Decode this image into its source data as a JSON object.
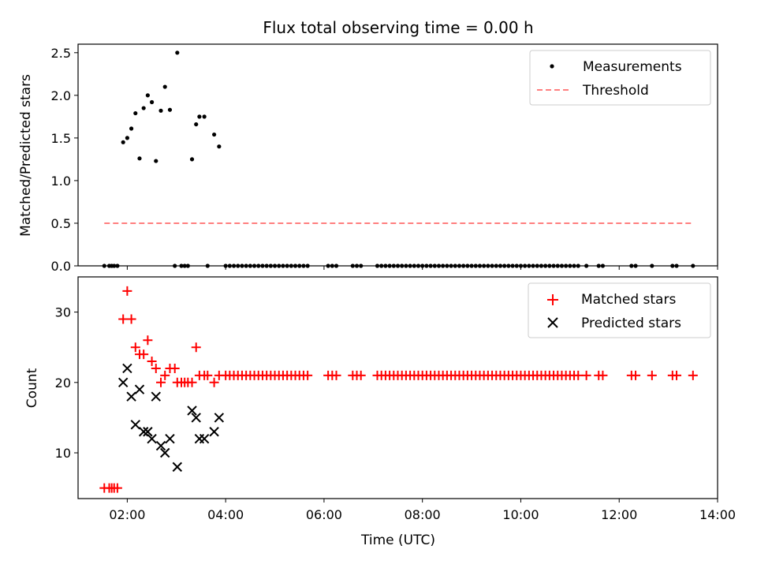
{
  "chart_data": [
    {
      "type": "scatter",
      "title": "Flux total observing time = 0.00 h",
      "xlabel": "",
      "ylabel": "Matched/Predicted stars",
      "xlim": [
        "01:00",
        "14:00"
      ],
      "ylim": [
        0,
        2.6
      ],
      "xticks": [
        "02:00",
        "04:00",
        "06:00",
        "08:00",
        "10:00",
        "12:00",
        "14:00"
      ],
      "yticks": [
        "0.0",
        "0.5",
        "1.0",
        "1.5",
        "2.0",
        "2.5"
      ],
      "legend_position": "upper right",
      "series": [
        {
          "name": "Measurements",
          "marker": "dot",
          "color": "#000000",
          "points": [
            [
              "01:32",
              0
            ],
            [
              "01:38",
              0
            ],
            [
              "01:41",
              0
            ],
            [
              "01:44",
              0
            ],
            [
              "01:48",
              0
            ],
            [
              "01:55",
              1.45
            ],
            [
              "02:00",
              1.5
            ],
            [
              "02:05",
              1.61
            ],
            [
              "02:10",
              1.79
            ],
            [
              "02:15",
              1.26
            ],
            [
              "02:20",
              1.85
            ],
            [
              "02:25",
              2.0
            ],
            [
              "02:30",
              1.92
            ],
            [
              "02:35",
              1.23
            ],
            [
              "02:41",
              1.82
            ],
            [
              "02:46",
              2.1
            ],
            [
              "02:52",
              1.83
            ],
            [
              "02:58",
              0
            ],
            [
              "03:01",
              2.5
            ],
            [
              "03:06",
              0
            ],
            [
              "03:10",
              0
            ],
            [
              "03:14",
              0
            ],
            [
              "03:19",
              1.25
            ],
            [
              "03:24",
              1.66
            ],
            [
              "03:28",
              1.75
            ],
            [
              "03:34",
              1.75
            ],
            [
              "03:38",
              0
            ],
            [
              "03:46",
              1.54
            ],
            [
              "03:52",
              1.4
            ],
            [
              "04:00",
              0
            ],
            [
              "04:05",
              0
            ],
            [
              "04:10",
              0
            ],
            [
              "04:15",
              0
            ],
            [
              "04:20",
              0
            ],
            [
              "04:25",
              0
            ],
            [
              "04:30",
              0
            ],
            [
              "04:35",
              0
            ],
            [
              "04:40",
              0
            ],
            [
              "04:45",
              0
            ],
            [
              "04:50",
              0
            ],
            [
              "04:55",
              0
            ],
            [
              "05:00",
              0
            ],
            [
              "05:05",
              0
            ],
            [
              "05:10",
              0
            ],
            [
              "05:15",
              0
            ],
            [
              "05:20",
              0
            ],
            [
              "05:25",
              0
            ],
            [
              "05:30",
              0
            ],
            [
              "05:35",
              0
            ],
            [
              "05:40",
              0
            ],
            [
              "06:05",
              0
            ],
            [
              "06:10",
              0
            ],
            [
              "06:15",
              0
            ],
            [
              "06:35",
              0
            ],
            [
              "06:40",
              0
            ],
            [
              "06:45",
              0
            ],
            [
              "07:05",
              0
            ],
            [
              "07:10",
              0
            ],
            [
              "07:15",
              0
            ],
            [
              "07:20",
              0
            ],
            [
              "07:25",
              0
            ],
            [
              "07:30",
              0
            ],
            [
              "07:35",
              0
            ],
            [
              "07:40",
              0
            ],
            [
              "07:45",
              0
            ],
            [
              "07:50",
              0
            ],
            [
              "07:55",
              0
            ],
            [
              "08:00",
              0
            ],
            [
              "08:05",
              0
            ],
            [
              "08:10",
              0
            ],
            [
              "08:15",
              0
            ],
            [
              "08:20",
              0
            ],
            [
              "08:25",
              0
            ],
            [
              "08:30",
              0
            ],
            [
              "08:35",
              0
            ],
            [
              "08:40",
              0
            ],
            [
              "08:45",
              0
            ],
            [
              "08:50",
              0
            ],
            [
              "08:55",
              0
            ],
            [
              "09:00",
              0
            ],
            [
              "09:05",
              0
            ],
            [
              "09:10",
              0
            ],
            [
              "09:15",
              0
            ],
            [
              "09:20",
              0
            ],
            [
              "09:25",
              0
            ],
            [
              "09:30",
              0
            ],
            [
              "09:35",
              0
            ],
            [
              "09:40",
              0
            ],
            [
              "09:45",
              0
            ],
            [
              "09:50",
              0
            ],
            [
              "09:55",
              0
            ],
            [
              "10:00",
              0
            ],
            [
              "10:05",
              0
            ],
            [
              "10:10",
              0
            ],
            [
              "10:15",
              0
            ],
            [
              "10:20",
              0
            ],
            [
              "10:25",
              0
            ],
            [
              "10:30",
              0
            ],
            [
              "10:35",
              0
            ],
            [
              "10:40",
              0
            ],
            [
              "10:45",
              0
            ],
            [
              "10:50",
              0
            ],
            [
              "10:55",
              0
            ],
            [
              "11:00",
              0
            ],
            [
              "11:05",
              0
            ],
            [
              "11:10",
              0
            ],
            [
              "11:20",
              0
            ],
            [
              "11:35",
              0
            ],
            [
              "11:40",
              0
            ],
            [
              "12:15",
              0
            ],
            [
              "12:20",
              0
            ],
            [
              "12:40",
              0
            ],
            [
              "13:05",
              0
            ],
            [
              "13:10",
              0
            ],
            [
              "13:30",
              0
            ]
          ]
        },
        {
          "name": "Threshold",
          "style": "dashed",
          "color": "#ff7f7f",
          "points": [
            [
              "01:32",
              0.5
            ],
            [
              "13:30",
              0.5
            ]
          ]
        }
      ]
    },
    {
      "type": "scatter",
      "title": "",
      "xlabel": "Time (UTC)",
      "ylabel": "Count",
      "xlim": [
        "01:00",
        "14:00"
      ],
      "ylim": [
        3.5,
        35
      ],
      "xticks": [
        "02:00",
        "04:00",
        "06:00",
        "08:00",
        "10:00",
        "12:00",
        "14:00"
      ],
      "yticks": [
        "10",
        "20",
        "30"
      ],
      "legend_position": "upper right",
      "series": [
        {
          "name": "Matched stars",
          "marker": "plus",
          "color": "#ff0000",
          "points": [
            [
              "01:32",
              5
            ],
            [
              "01:38",
              5
            ],
            [
              "01:41",
              5
            ],
            [
              "01:44",
              5
            ],
            [
              "01:48",
              5
            ],
            [
              "01:55",
              29
            ],
            [
              "02:00",
              33
            ],
            [
              "02:05",
              29
            ],
            [
              "02:10",
              25
            ],
            [
              "02:15",
              24
            ],
            [
              "02:20",
              24
            ],
            [
              "02:25",
              26
            ],
            [
              "02:30",
              23
            ],
            [
              "02:35",
              22
            ],
            [
              "02:41",
              20
            ],
            [
              "02:46",
              21
            ],
            [
              "02:52",
              22
            ],
            [
              "02:58",
              22
            ],
            [
              "03:01",
              20
            ],
            [
              "03:06",
              20
            ],
            [
              "03:10",
              20
            ],
            [
              "03:14",
              20
            ],
            [
              "03:19",
              20
            ],
            [
              "03:24",
              25
            ],
            [
              "03:28",
              21
            ],
            [
              "03:34",
              21
            ],
            [
              "03:38",
              21
            ],
            [
              "03:46",
              20
            ],
            [
              "03:52",
              21
            ],
            [
              "04:00",
              21
            ],
            [
              "04:05",
              21
            ],
            [
              "04:10",
              21
            ],
            [
              "04:15",
              21
            ],
            [
              "04:20",
              21
            ],
            [
              "04:25",
              21
            ],
            [
              "04:30",
              21
            ],
            [
              "04:35",
              21
            ],
            [
              "04:40",
              21
            ],
            [
              "04:45",
              21
            ],
            [
              "04:50",
              21
            ],
            [
              "04:55",
              21
            ],
            [
              "05:00",
              21
            ],
            [
              "05:05",
              21
            ],
            [
              "05:10",
              21
            ],
            [
              "05:15",
              21
            ],
            [
              "05:20",
              21
            ],
            [
              "05:25",
              21
            ],
            [
              "05:30",
              21
            ],
            [
              "05:35",
              21
            ],
            [
              "05:40",
              21
            ],
            [
              "06:05",
              21
            ],
            [
              "06:10",
              21
            ],
            [
              "06:15",
              21
            ],
            [
              "06:35",
              21
            ],
            [
              "06:40",
              21
            ],
            [
              "06:45",
              21
            ],
            [
              "07:05",
              21
            ],
            [
              "07:10",
              21
            ],
            [
              "07:15",
              21
            ],
            [
              "07:20",
              21
            ],
            [
              "07:25",
              21
            ],
            [
              "07:30",
              21
            ],
            [
              "07:35",
              21
            ],
            [
              "07:40",
              21
            ],
            [
              "07:45",
              21
            ],
            [
              "07:50",
              21
            ],
            [
              "07:55",
              21
            ],
            [
              "08:00",
              21
            ],
            [
              "08:05",
              21
            ],
            [
              "08:10",
              21
            ],
            [
              "08:15",
              21
            ],
            [
              "08:20",
              21
            ],
            [
              "08:25",
              21
            ],
            [
              "08:30",
              21
            ],
            [
              "08:35",
              21
            ],
            [
              "08:40",
              21
            ],
            [
              "08:45",
              21
            ],
            [
              "08:50",
              21
            ],
            [
              "08:55",
              21
            ],
            [
              "09:00",
              21
            ],
            [
              "09:05",
              21
            ],
            [
              "09:10",
              21
            ],
            [
              "09:15",
              21
            ],
            [
              "09:20",
              21
            ],
            [
              "09:25",
              21
            ],
            [
              "09:30",
              21
            ],
            [
              "09:35",
              21
            ],
            [
              "09:40",
              21
            ],
            [
              "09:45",
              21
            ],
            [
              "09:50",
              21
            ],
            [
              "09:55",
              21
            ],
            [
              "10:00",
              21
            ],
            [
              "10:05",
              21
            ],
            [
              "10:10",
              21
            ],
            [
              "10:15",
              21
            ],
            [
              "10:20",
              21
            ],
            [
              "10:25",
              21
            ],
            [
              "10:30",
              21
            ],
            [
              "10:35",
              21
            ],
            [
              "10:40",
              21
            ],
            [
              "10:45",
              21
            ],
            [
              "10:50",
              21
            ],
            [
              "10:55",
              21
            ],
            [
              "11:00",
              21
            ],
            [
              "11:05",
              21
            ],
            [
              "11:10",
              21
            ],
            [
              "11:20",
              21
            ],
            [
              "11:35",
              21
            ],
            [
              "11:40",
              21
            ],
            [
              "12:15",
              21
            ],
            [
              "12:20",
              21
            ],
            [
              "12:40",
              21
            ],
            [
              "13:05",
              21
            ],
            [
              "13:10",
              21
            ],
            [
              "13:30",
              21
            ]
          ]
        },
        {
          "name": "Predicted stars",
          "marker": "x",
          "color": "#000000",
          "points": [
            [
              "01:55",
              20
            ],
            [
              "02:00",
              22
            ],
            [
              "02:05",
              18
            ],
            [
              "02:10",
              14
            ],
            [
              "02:15",
              19
            ],
            [
              "02:20",
              13
            ],
            [
              "02:25",
              13
            ],
            [
              "02:30",
              12
            ],
            [
              "02:35",
              18
            ],
            [
              "02:41",
              11
            ],
            [
              "02:46",
              10
            ],
            [
              "02:52",
              12
            ],
            [
              "03:01",
              8
            ],
            [
              "03:19",
              16
            ],
            [
              "03:24",
              15
            ],
            [
              "03:28",
              12
            ],
            [
              "03:34",
              12
            ],
            [
              "03:46",
              13
            ],
            [
              "03:52",
              15
            ]
          ]
        }
      ]
    }
  ]
}
